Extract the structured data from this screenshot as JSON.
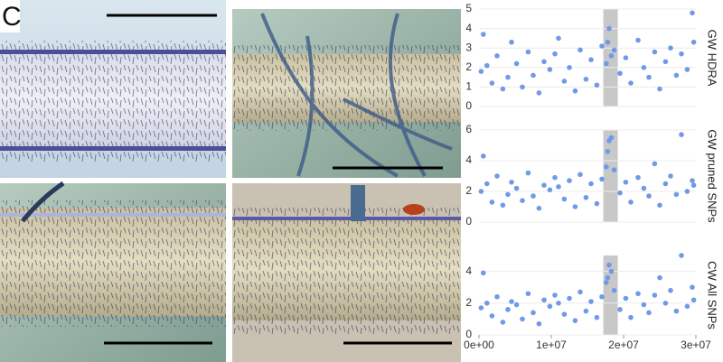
{
  "panel_label": "C",
  "chart_data": [
    {
      "type": "scatter",
      "y_label": "GW HDRA",
      "color": "#6f9ae8",
      "highlight_x": [
        17200000,
        19200000
      ],
      "highlight_color": "#c8c8c8",
      "grid": true,
      "xlim": [
        0,
        30000000
      ],
      "ylim": [
        0,
        5
      ],
      "yticks": [
        0,
        1,
        2,
        3,
        4,
        5
      ],
      "x": [
        300000,
        600000,
        1100000,
        1800000,
        2500000,
        3300000,
        4000000,
        4500000,
        5200000,
        6000000,
        6800000,
        7500000,
        8300000,
        9000000,
        9800000,
        10500000,
        11000000,
        11800000,
        12500000,
        13300000,
        14000000,
        14800000,
        15500000,
        16300000,
        17000000,
        17600000,
        17800000,
        18000000,
        18300000,
        18700000,
        19500000,
        20300000,
        21000000,
        22000000,
        22800000,
        23500000,
        24300000,
        25000000,
        25800000,
        26500000,
        27300000,
        28000000,
        28800000,
        29500000,
        29700000
      ],
      "values": [
        1.8,
        3.7,
        2.1,
        1.2,
        2.6,
        0.9,
        1.5,
        3.3,
        2.2,
        1.0,
        2.8,
        1.6,
        0.7,
        2.3,
        1.9,
        2.7,
        3.5,
        1.3,
        2.0,
        0.8,
        2.9,
        1.4,
        2.4,
        1.1,
        3.1,
        2.2,
        3.3,
        4.0,
        2.6,
        2.9,
        1.7,
        2.5,
        1.2,
        3.4,
        2.0,
        1.5,
        2.8,
        0.9,
        2.3,
        3.0,
        1.6,
        2.7,
        1.9,
        4.8,
        3.3
      ]
    },
    {
      "type": "scatter",
      "y_label": "GW pruned SNPs",
      "color": "#6f9ae8",
      "highlight_x": [
        17200000,
        19200000
      ],
      "highlight_color": "#c8c8c8",
      "grid": true,
      "xlim": [
        0,
        30000000
      ],
      "ylim": [
        0,
        6
      ],
      "yticks": [
        0,
        2,
        4,
        6
      ],
      "x": [
        300000,
        600000,
        1100000,
        1800000,
        2500000,
        3300000,
        4000000,
        4500000,
        5200000,
        6000000,
        6800000,
        7500000,
        8300000,
        9000000,
        9800000,
        10500000,
        11000000,
        11800000,
        12500000,
        13300000,
        14000000,
        14800000,
        15500000,
        16300000,
        17000000,
        17600000,
        17800000,
        18000000,
        18300000,
        18700000,
        19500000,
        20300000,
        21000000,
        22000000,
        22800000,
        23500000,
        24300000,
        25000000,
        25800000,
        26500000,
        27300000,
        28000000,
        28800000,
        29500000,
        29700000
      ],
      "values": [
        2.0,
        4.3,
        2.5,
        1.3,
        3.0,
        1.1,
        1.8,
        2.6,
        2.2,
        1.4,
        3.2,
        1.7,
        0.9,
        2.4,
        2.1,
        2.9,
        2.3,
        1.5,
        2.7,
        1.0,
        3.1,
        1.6,
        2.5,
        1.2,
        2.8,
        3.6,
        4.6,
        5.3,
        5.5,
        3.4,
        1.9,
        2.6,
        1.3,
        2.9,
        2.2,
        1.7,
        3.8,
        1.1,
        2.5,
        3.0,
        1.8,
        5.7,
        2.0,
        2.7,
        2.4
      ]
    },
    {
      "type": "scatter",
      "y_label": "CW All SNPs",
      "color": "#6f9ae8",
      "highlight_x": [
        17200000,
        19200000
      ],
      "highlight_color": "#c8c8c8",
      "grid": true,
      "xlim": [
        0,
        30000000
      ],
      "ylim": [
        0,
        5
      ],
      "yticks": [
        0,
        2,
        4
      ],
      "xticks": [
        {
          "value": 0,
          "label": "0e+00"
        },
        {
          "value": 10000000,
          "label": "1e+07"
        },
        {
          "value": 20000000,
          "label": "2e+07"
        },
        {
          "value": 30000000,
          "label": "3e+07"
        }
      ],
      "x": [
        300000,
        600000,
        1100000,
        1800000,
        2500000,
        3300000,
        4000000,
        4500000,
        5200000,
        6000000,
        6800000,
        7500000,
        8300000,
        9000000,
        9800000,
        10500000,
        11000000,
        11800000,
        12500000,
        13300000,
        14000000,
        14800000,
        15500000,
        16300000,
        17000000,
        17600000,
        17800000,
        18000000,
        18300000,
        18700000,
        19500000,
        20300000,
        21000000,
        22000000,
        22800000,
        23500000,
        24300000,
        25000000,
        25800000,
        26500000,
        27300000,
        28000000,
        28800000,
        29500000,
        29700000
      ],
      "values": [
        1.7,
        3.9,
        2.0,
        1.2,
        2.4,
        0.8,
        1.6,
        2.1,
        1.9,
        1.0,
        2.6,
        1.4,
        0.7,
        2.2,
        1.8,
        2.5,
        2.0,
        1.3,
        2.3,
        0.9,
        2.7,
        1.5,
        2.1,
        1.1,
        2.4,
        3.3,
        3.6,
        4.4,
        4.0,
        2.8,
        1.6,
        2.3,
        1.1,
        2.6,
        1.9,
        1.4,
        2.5,
        3.6,
        2.0,
        2.8,
        1.5,
        5.0,
        1.8,
        3.0,
        2.2
      ]
    }
  ]
}
